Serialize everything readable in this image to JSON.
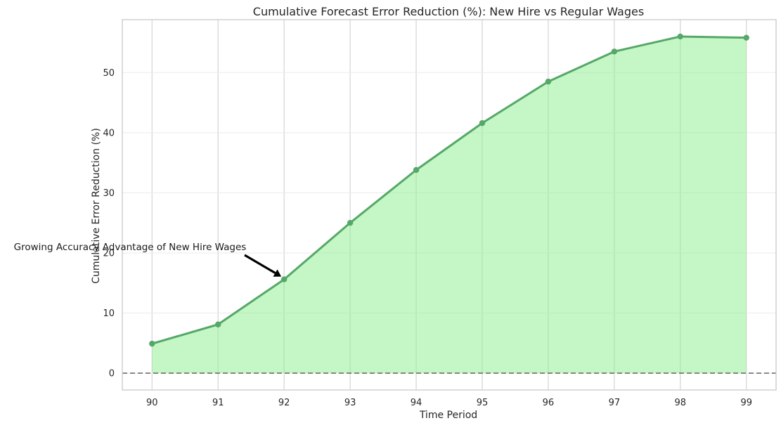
{
  "chart_data": {
    "type": "area",
    "title": "Cumulative Forecast Error Reduction (%): New Hire vs Regular Wages",
    "xlabel": "Time Period",
    "ylabel": "Cumulative Error Reduction (%)",
    "x": [
      90,
      91,
      92,
      93,
      94,
      95,
      96,
      97,
      98,
      99
    ],
    "series": [
      {
        "values": [
          4.9,
          8.1,
          15.6,
          25.0,
          33.8,
          41.6,
          48.5,
          53.5,
          56.0,
          55.8
        ]
      }
    ],
    "xlim": [
      89.55,
      99.45
    ],
    "ylim": [
      -2.8,
      58.8
    ],
    "yticks": [
      0,
      10,
      20,
      30,
      40,
      50
    ],
    "xticks": [
      90,
      91,
      92,
      93,
      94,
      95,
      96,
      97,
      98,
      99
    ],
    "baseline": 0,
    "grid": true,
    "colors": {
      "line": "#55a868",
      "fill": "#90ee90",
      "baseline": "#555555",
      "grid": "#dddddd",
      "frame": "#cccccc"
    },
    "annotation": {
      "text": "Growing Accuracy Advantage of New Hire Wages",
      "x": 92,
      "y": 15.6
    }
  }
}
